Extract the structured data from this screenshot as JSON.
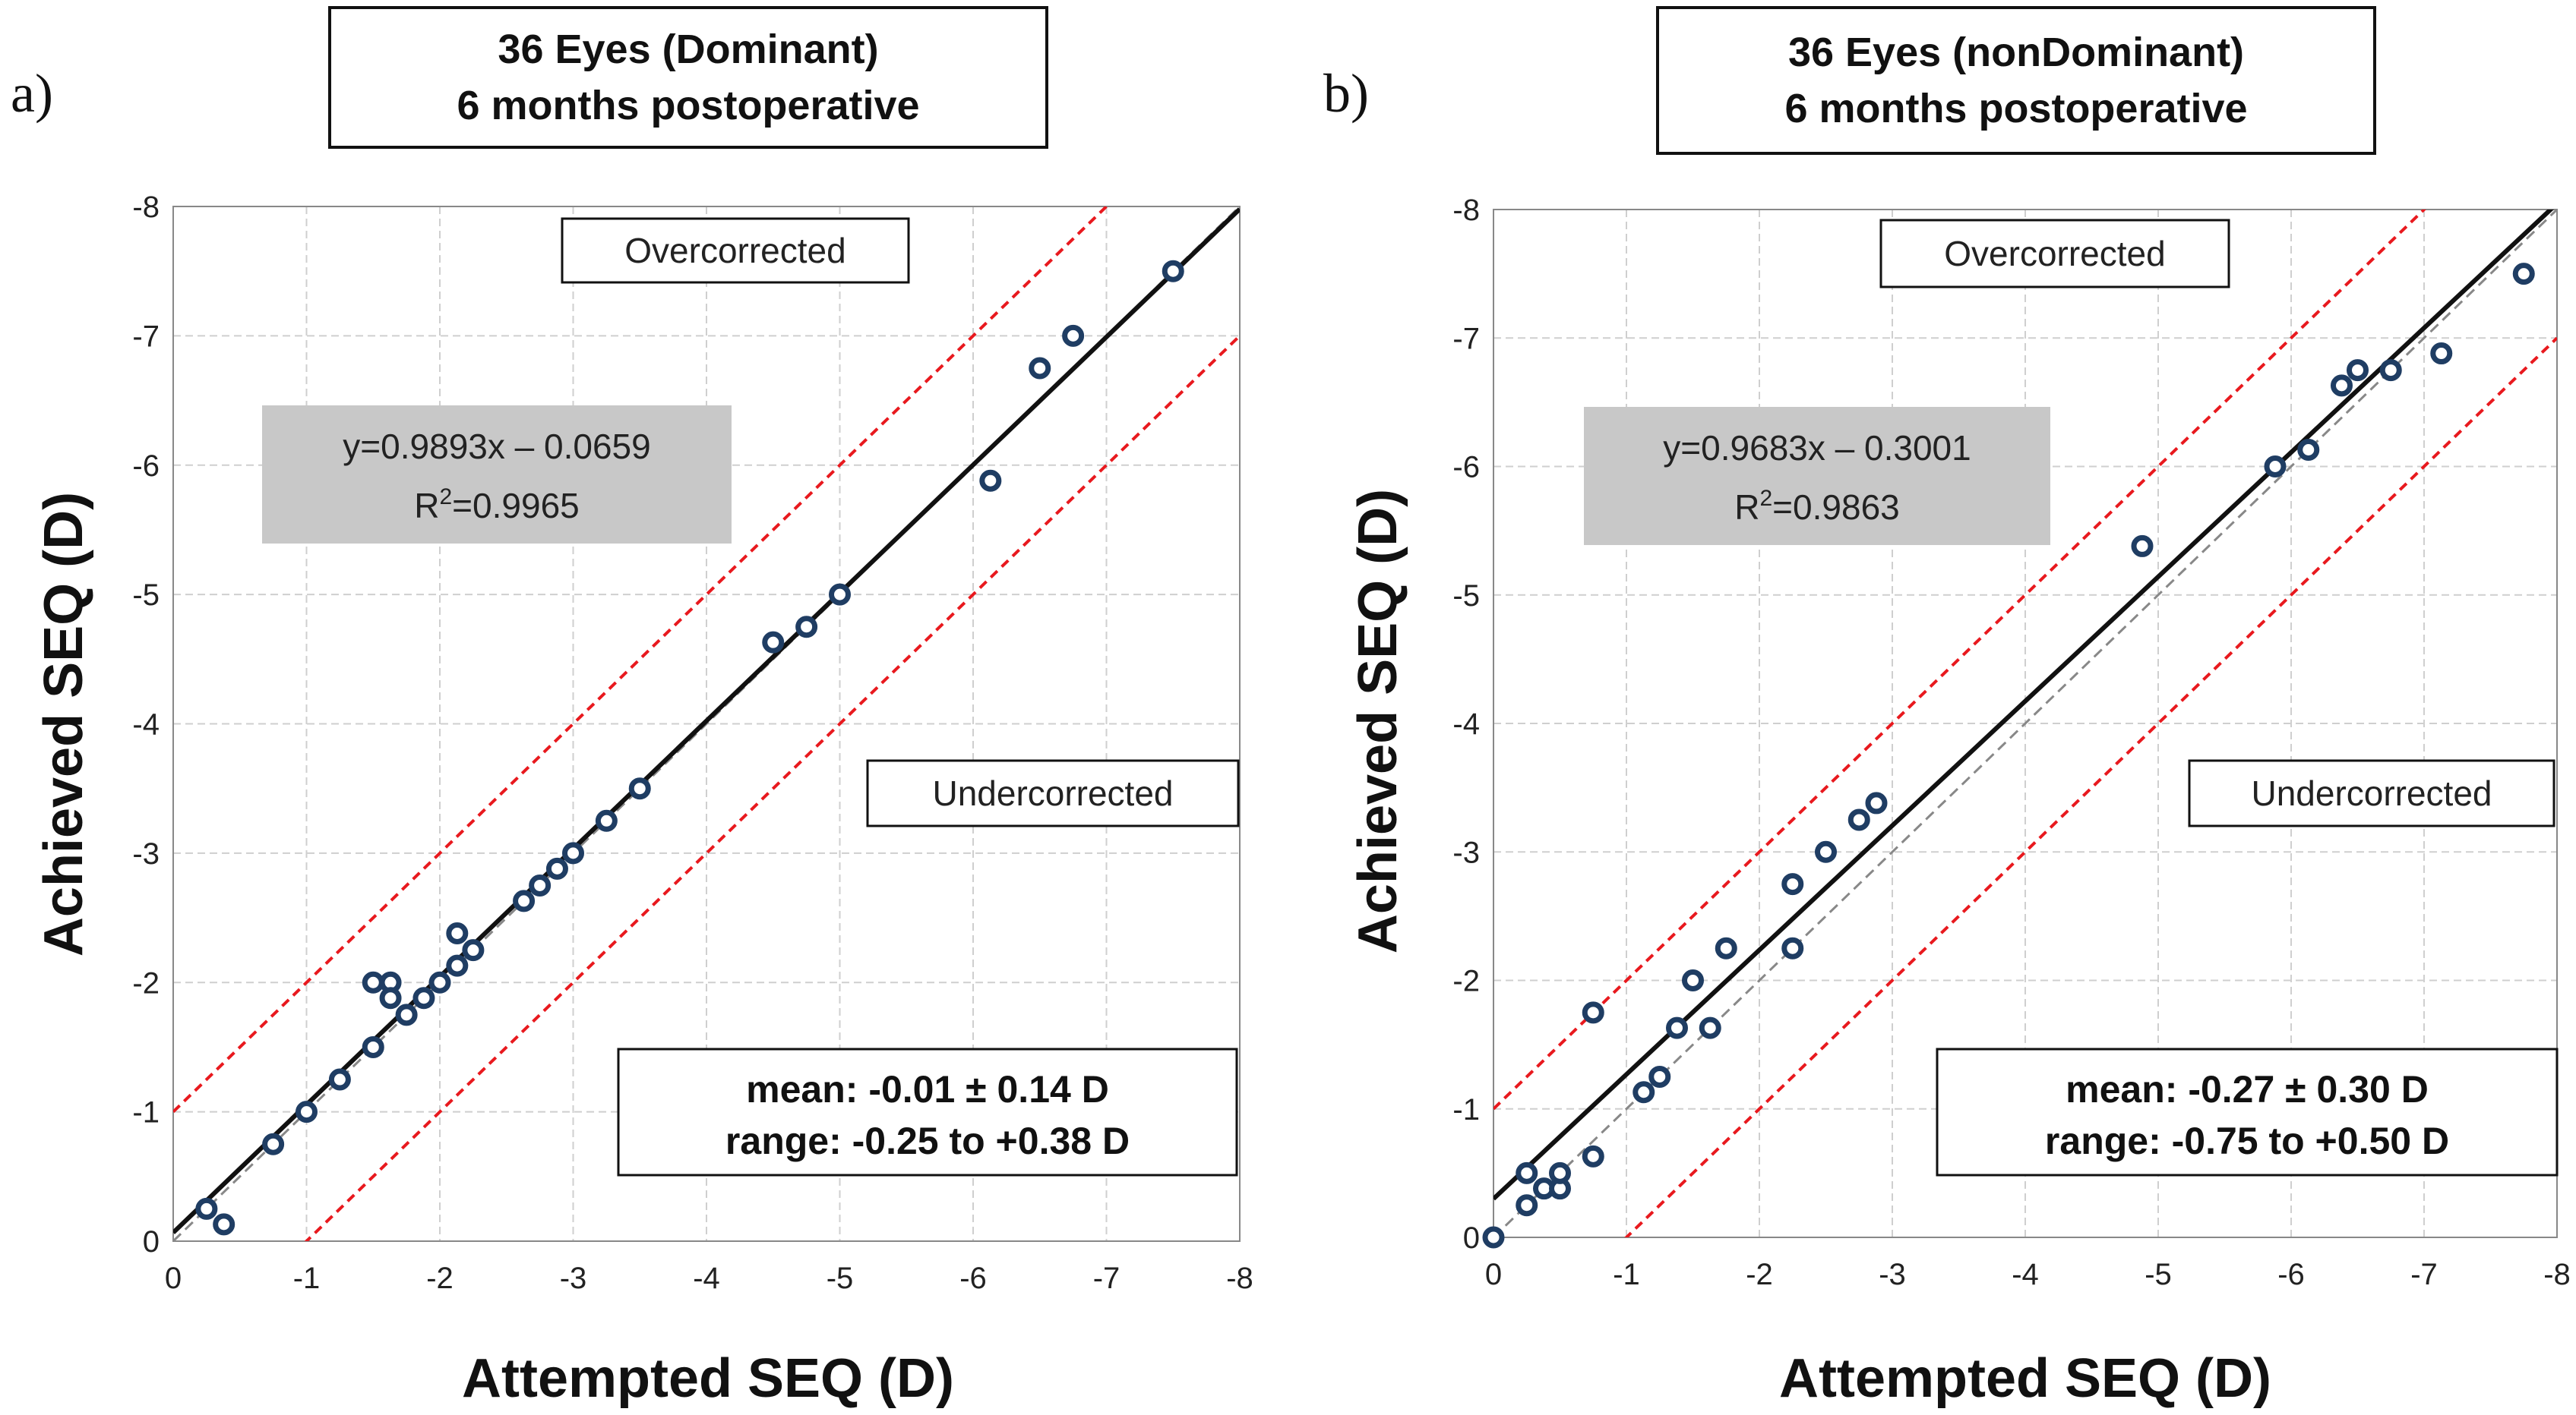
{
  "panels": [
    {
      "letter": "a)",
      "title_line1": "36 Eyes (Dominant)",
      "title_line2": "6 months postoperative",
      "over_label": "Overcorrected",
      "under_label": "Undercorrected",
      "eq_line1": "y=0.9893x – 0.0659",
      "eq_line2_prefix": "R",
      "eq_line2_sup": "2",
      "eq_line2_suffix": "=0.9965",
      "stat_line1": "mean: -0.01 ± 0.14 D",
      "stat_line2": "range: -0.25 to +0.38 D"
    },
    {
      "letter": "b)",
      "title_line1": "36 Eyes (nonDominant)",
      "title_line2": "6 months postoperative",
      "over_label": "Overcorrected",
      "under_label": "Undercorrected",
      "eq_line1": "y=0.9683x – 0.3001",
      "eq_line2_prefix": "R",
      "eq_line2_sup": "2",
      "eq_line2_suffix": "=0.9863",
      "stat_line1": "mean: -0.27 ± 0.30 D",
      "stat_line2": "range: -0.75 to +0.50 D"
    }
  ],
  "colors": {
    "point": "#1f3d63",
    "fit_line": "#111111",
    "identity_line": "#888888",
    "bound_line": "#e8191e",
    "grid": "#cfcfcf",
    "eq_box": "#c8c8c8"
  },
  "chart_data": [
    {
      "type": "scatter",
      "xlabel": "Attempted SEQ (D)",
      "ylabel": "Achieved SEQ (D)",
      "xlim": [
        0,
        -8
      ],
      "ylim": [
        0,
        -8
      ],
      "ticks": [
        "0",
        "-1",
        "-2",
        "-3",
        "-4",
        "-5",
        "-6",
        "-7",
        "-8"
      ],
      "tick_values": [
        0,
        -1,
        -2,
        -3,
        -4,
        -5,
        -6,
        -7,
        -8
      ],
      "grid": true,
      "fit": {
        "slope": 0.9893,
        "intercept": -0.0659
      },
      "bounds_offset": 1,
      "points": [
        {
          "x": -0.25,
          "y": -0.25
        },
        {
          "x": -0.38,
          "y": -0.13
        },
        {
          "x": -0.75,
          "y": -0.75
        },
        {
          "x": -1.0,
          "y": -1.0
        },
        {
          "x": -1.25,
          "y": -1.25
        },
        {
          "x": -1.5,
          "y": -1.5
        },
        {
          "x": -1.5,
          "y": -2.0
        },
        {
          "x": -1.63,
          "y": -2.0
        },
        {
          "x": -1.63,
          "y": -1.88
        },
        {
          "x": -1.75,
          "y": -1.75
        },
        {
          "x": -1.88,
          "y": -1.88
        },
        {
          "x": -2.0,
          "y": -2.0
        },
        {
          "x": -2.13,
          "y": -2.13
        },
        {
          "x": -2.13,
          "y": -2.38
        },
        {
          "x": -2.25,
          "y": -2.25
        },
        {
          "x": -2.63,
          "y": -2.63
        },
        {
          "x": -2.75,
          "y": -2.75
        },
        {
          "x": -2.88,
          "y": -2.88
        },
        {
          "x": -3.0,
          "y": -3.0
        },
        {
          "x": -3.25,
          "y": -3.25
        },
        {
          "x": -3.5,
          "y": -3.5
        },
        {
          "x": -4.5,
          "y": -4.63
        },
        {
          "x": -4.75,
          "y": -4.75
        },
        {
          "x": -5.0,
          "y": -5.0
        },
        {
          "x": -6.13,
          "y": -5.88
        },
        {
          "x": -6.5,
          "y": -6.75
        },
        {
          "x": -6.75,
          "y": -7.0
        },
        {
          "x": -7.5,
          "y": -7.5
        }
      ]
    },
    {
      "type": "scatter",
      "xlabel": "Attempted SEQ (D)",
      "ylabel": "Achieved SEQ (D)",
      "xlim": [
        0,
        -8
      ],
      "ylim": [
        0,
        -8
      ],
      "ticks": [
        "0",
        "-1",
        "-2",
        "-3",
        "-4",
        "-5",
        "-6",
        "-7",
        "-8"
      ],
      "tick_values": [
        0,
        -1,
        -2,
        -3,
        -4,
        -5,
        -6,
        -7,
        -8
      ],
      "grid": true,
      "fit": {
        "slope": 0.9683,
        "intercept": -0.3001
      },
      "bounds_offset": 1,
      "points": [
        {
          "x": 0.0,
          "y": 0.0
        },
        {
          "x": -0.25,
          "y": -0.25
        },
        {
          "x": -0.25,
          "y": -0.5
        },
        {
          "x": -0.38,
          "y": -0.38
        },
        {
          "x": -0.5,
          "y": -0.38
        },
        {
          "x": -0.5,
          "y": -0.5
        },
        {
          "x": -0.75,
          "y": -0.63
        },
        {
          "x": -0.75,
          "y": -1.75
        },
        {
          "x": -1.13,
          "y": -1.13
        },
        {
          "x": -1.25,
          "y": -1.25
        },
        {
          "x": -1.38,
          "y": -1.63
        },
        {
          "x": -1.5,
          "y": -2.0
        },
        {
          "x": -1.63,
          "y": -1.63
        },
        {
          "x": -1.75,
          "y": -2.25
        },
        {
          "x": -2.25,
          "y": -2.25
        },
        {
          "x": -2.25,
          "y": -2.75
        },
        {
          "x": -2.5,
          "y": -3.0
        },
        {
          "x": -2.75,
          "y": -3.25
        },
        {
          "x": -2.88,
          "y": -3.38
        },
        {
          "x": -4.88,
          "y": -5.38
        },
        {
          "x": -5.88,
          "y": -6.0
        },
        {
          "x": -6.13,
          "y": -6.13
        },
        {
          "x": -6.38,
          "y": -6.63
        },
        {
          "x": -6.5,
          "y": -6.75
        },
        {
          "x": -6.75,
          "y": -6.75
        },
        {
          "x": -7.13,
          "y": -6.88
        },
        {
          "x": -7.75,
          "y": -7.5
        }
      ]
    }
  ]
}
